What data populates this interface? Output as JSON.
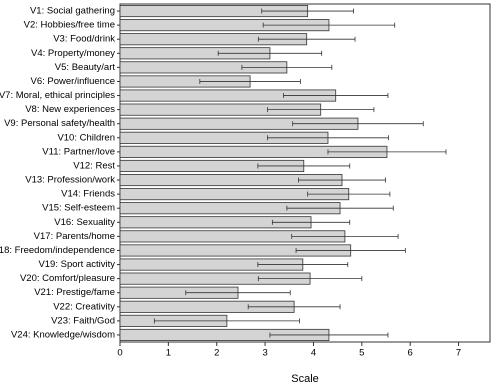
{
  "chart_data": {
    "type": "bar",
    "orientation": "horizontal",
    "x_label": "Scale",
    "categories": [
      "V1: Social gathering",
      "V2: Hobbies/free time",
      "V3: Food/drink",
      "V4: Property/money",
      "V5: Beauty/art",
      "V6: Power/influence",
      "V7: Moral, ethical principles",
      "V8: New experiences",
      "V9: Personal safety/health",
      "V10: Children",
      "V11: Partner/love",
      "V12: Rest",
      "V13: Profession/work",
      "V14: Friends",
      "V15: Self-esteem",
      "V16: Sexuality",
      "V17: Parents/home",
      "V18: Freedom/independence",
      "V19: Sport activity",
      "V20: Comfort/pleasure",
      "V21: Prestige/fame",
      "V22: Creativity",
      "V23: Faith/God",
      "V24: Knowledge/wisdom"
    ],
    "values": [
      3.88,
      4.32,
      3.86,
      3.1,
      3.45,
      2.69,
      4.46,
      4.15,
      4.92,
      4.3,
      5.52,
      3.8,
      4.59,
      4.73,
      4.55,
      3.95,
      4.65,
      4.77,
      3.78,
      3.93,
      2.44,
      3.6,
      2.21,
      4.32
    ],
    "errors": [
      0.95,
      1.36,
      1.0,
      1.07,
      0.93,
      1.04,
      1.08,
      1.1,
      1.35,
      1.25,
      1.22,
      0.95,
      0.9,
      0.85,
      1.1,
      0.8,
      1.1,
      1.13,
      0.93,
      1.07,
      1.08,
      0.95,
      1.5,
      1.22
    ],
    "color": "#d4d4d4",
    "xlim": [
      0,
      7.65
    ],
    "xticks": [
      0,
      1,
      2,
      3,
      4,
      5,
      6,
      7
    ],
    "grid": false
  }
}
